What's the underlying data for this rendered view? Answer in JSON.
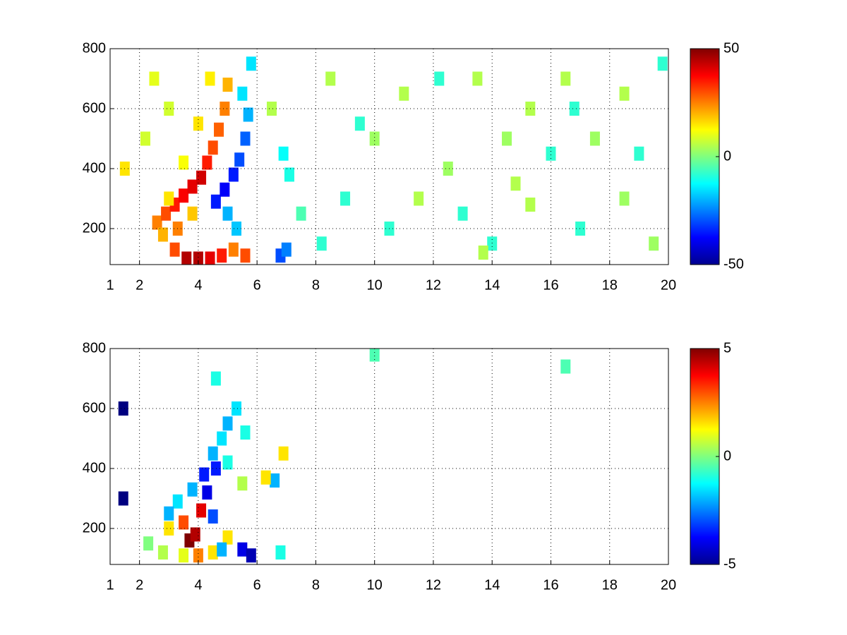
{
  "chart_data": [
    {
      "type": "heatmap",
      "xlim": [
        1,
        20
      ],
      "xticks": [
        1,
        2,
        4,
        6,
        8,
        10,
        12,
        14,
        16,
        18,
        20
      ],
      "ylim": [
        80,
        800
      ],
      "yticks": [
        200,
        400,
        600,
        800
      ],
      "clim": [
        -50,
        50
      ],
      "cticks": [
        -50,
        0,
        50
      ],
      "grid": true,
      "colormap": "jet",
      "x": [
        2.6,
        2.9,
        3.2,
        3.5,
        3.8,
        4.1,
        4.3,
        4.5,
        4.7,
        4.9,
        5.0,
        2.8,
        3.3,
        3.0,
        3.5,
        4.0,
        4.4,
        3.8,
        3.6,
        4.0,
        4.4,
        4.8,
        3.2,
        5.2,
        5.6,
        4.6,
        4.9,
        5.2,
        5.4,
        5.6,
        5.7,
        5.5,
        5.0,
        5.3,
        6.8,
        7.0,
        6.9,
        7.1,
        5.8,
        2.2,
        2.5,
        3.0,
        1.5,
        6.5,
        7.5,
        8.5,
        9.0,
        10.0,
        10.5,
        11.0,
        12.5,
        13.0,
        13.5,
        14.0,
        14.5,
        15.3,
        15.3,
        16.0,
        16.5,
        17.0,
        18.5,
        18.5,
        19.0,
        19.5,
        19.8,
        12.2,
        11.5,
        17.5,
        9.5,
        8.2,
        14.8,
        16.8,
        13.7
      ],
      "y": [
        220,
        250,
        280,
        310,
        340,
        370,
        420,
        470,
        530,
        600,
        680,
        180,
        200,
        300,
        420,
        550,
        700,
        250,
        100,
        100,
        100,
        110,
        130,
        130,
        110,
        290,
        330,
        380,
        430,
        500,
        580,
        650,
        250,
        200,
        110,
        130,
        450,
        380,
        750,
        500,
        700,
        600,
        400,
        600,
        250,
        700,
        300,
        500,
        200,
        650,
        400,
        250,
        700,
        150,
        500,
        600,
        280,
        450,
        700,
        200,
        650,
        300,
        450,
        150,
        750,
        700,
        300,
        500,
        550,
        150,
        350,
        600,
        120
      ],
      "values": [
        25,
        30,
        35,
        38,
        40,
        42,
        35,
        30,
        28,
        25,
        20,
        20,
        25,
        15,
        12,
        15,
        14,
        18,
        45,
        45,
        40,
        35,
        30,
        25,
        30,
        -35,
        -38,
        -35,
        -30,
        -28,
        -20,
        -15,
        -20,
        -18,
        -30,
        -25,
        -12,
        -10,
        -15,
        8,
        10,
        8,
        15,
        5,
        -5,
        5,
        -8,
        3,
        -8,
        5,
        3,
        -8,
        5,
        -8,
        3,
        5,
        5,
        -8,
        5,
        -8,
        5,
        3,
        -8,
        3,
        -8,
        -8,
        5,
        3,
        -8,
        -8,
        5,
        -8,
        5
      ]
    },
    {
      "type": "heatmap",
      "xlim": [
        1,
        20
      ],
      "xticks": [
        1,
        2,
        4,
        6,
        8,
        10,
        12,
        14,
        16,
        18,
        20
      ],
      "ylim": [
        80,
        800
      ],
      "yticks": [
        200,
        400,
        600,
        800
      ],
      "clim": [
        -5,
        5
      ],
      "cticks": [
        -5,
        0,
        5
      ],
      "grid": true,
      "colormap": "jet",
      "x": [
        1.45,
        1.45,
        4.5,
        4.8,
        5.0,
        5.3,
        5.6,
        4.2,
        3.8,
        3.3,
        4.6,
        3.0,
        4.3,
        4.6,
        5.0,
        5.5,
        3.7,
        3.9,
        4.1,
        3.5,
        4.0,
        3.0,
        3.5,
        4.5,
        5.0,
        2.8,
        6.9,
        5.5,
        5.8,
        4.5,
        4.8,
        6.8,
        6.6,
        6.3,
        2.3,
        10.0,
        16.5
      ],
      "y": [
        300,
        600,
        450,
        500,
        550,
        600,
        520,
        380,
        330,
        290,
        700,
        250,
        320,
        400,
        420,
        350,
        160,
        180,
        260,
        220,
        110,
        200,
        110,
        120,
        170,
        120,
        450,
        130,
        110,
        240,
        130,
        120,
        360,
        370,
        150,
        780,
        740
      ],
      "values": [
        -5,
        -5,
        -2,
        -1.5,
        -2,
        -1.5,
        -1,
        -3.5,
        -2,
        -1.5,
        -1,
        -2,
        -4,
        -3.5,
        -1,
        0.5,
        5,
        4.5,
        4,
        3,
        2.5,
        1.5,
        1,
        1.5,
        1.5,
        0.5,
        1.5,
        -4,
        -4.5,
        -3,
        -2,
        -1,
        -2,
        1.5,
        0,
        -0.5,
        -0.5
      ]
    }
  ]
}
